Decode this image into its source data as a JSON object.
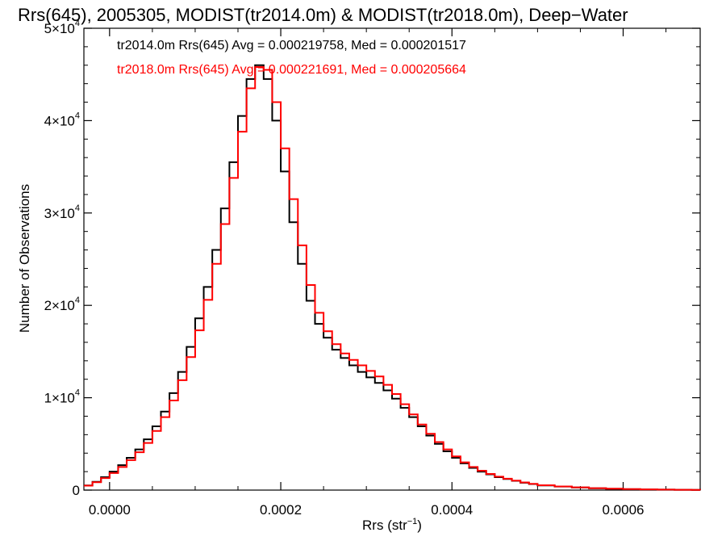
{
  "chart_data": {
    "type": "line",
    "title": "Rrs(645), 2005305, MODIST(tr2014.0m) & MODIST(tr2018.0m), Deep−Water",
    "xlabel": "Rrs (str",
    "xlabel_sup": "−1",
    "xlabel_close": ")",
    "ylabel": "Number of Observations",
    "xlim": [
      -3e-05,
      0.00069
    ],
    "ylim": [
      0,
      50000
    ],
    "x_ticks": [
      {
        "value": 0.0,
        "label": "0.0000"
      },
      {
        "value": 0.0002,
        "label": "0.0002"
      },
      {
        "value": 0.0004,
        "label": "0.0004"
      },
      {
        "value": 0.0006,
        "label": "0.0006"
      }
    ],
    "y_ticks": [
      {
        "value": 0,
        "label": "0",
        "mant": "",
        "exp": ""
      },
      {
        "value": 10000,
        "label": "",
        "mant": "1×10",
        "exp": "4"
      },
      {
        "value": 20000,
        "label": "",
        "mant": "2×10",
        "exp": "4"
      },
      {
        "value": 30000,
        "label": "",
        "mant": "3×10",
        "exp": "4"
      },
      {
        "value": 40000,
        "label": "",
        "mant": "4×10",
        "exp": "4"
      },
      {
        "value": 50000,
        "label": "",
        "mant": "5×10",
        "exp": "4"
      }
    ],
    "annotations": [
      "tr2014.0m Rrs(645) Avg = 0.000219758, Med = 0.000201517",
      "tr2018.0m Rrs(645) Avg = 0.000221691, Med = 0.000205664"
    ],
    "series": [
      {
        "color": "#000000",
        "x": [
          -3e-05,
          -2e-05,
          -1e-05,
          0.0,
          1e-05,
          2e-05,
          3e-05,
          4e-05,
          5e-05,
          6e-05,
          7e-05,
          8e-05,
          9e-05,
          0.0001,
          0.00011,
          0.00012,
          0.00013,
          0.00014,
          0.00015,
          0.00016,
          0.00017,
          0.00018,
          0.00019,
          0.0002,
          0.00021,
          0.00022,
          0.00023,
          0.00024,
          0.00025,
          0.00026,
          0.00027,
          0.00028,
          0.00029,
          0.0003,
          0.00031,
          0.00032,
          0.00033,
          0.00034,
          0.00035,
          0.00036,
          0.00037,
          0.00038,
          0.00039,
          0.0004,
          0.00041,
          0.00042,
          0.00043,
          0.00044,
          0.00045,
          0.00046,
          0.00047,
          0.00048,
          0.00049,
          0.0005,
          0.00052,
          0.00054,
          0.00056,
          0.00058,
          0.0006,
          0.00062,
          0.00064,
          0.00066,
          0.00068,
          0.00069
        ],
        "y": [
          500,
          900,
          1400,
          2000,
          2700,
          3500,
          4400,
          5500,
          6900,
          8500,
          10500,
          12800,
          15500,
          18600,
          22000,
          26000,
          30500,
          35500,
          40500,
          44500,
          46000,
          44500,
          40000,
          34500,
          29000,
          24500,
          20500,
          18000,
          16500,
          15200,
          14300,
          13500,
          12800,
          12200,
          11600,
          10800,
          9900,
          8900,
          7900,
          6900,
          5900,
          5000,
          4200,
          3500,
          2900,
          2400,
          2000,
          1700,
          1400,
          1200,
          1000,
          800,
          650,
          500,
          380,
          280,
          200,
          140,
          100,
          70,
          50,
          30,
          20,
          10
        ]
      },
      {
        "color": "#ff0000",
        "x": [
          -3e-05,
          -2e-05,
          -1e-05,
          0.0,
          1e-05,
          2e-05,
          3e-05,
          4e-05,
          5e-05,
          6e-05,
          7e-05,
          8e-05,
          9e-05,
          0.0001,
          0.00011,
          0.00012,
          0.00013,
          0.00014,
          0.00015,
          0.00016,
          0.00017,
          0.00018,
          0.00019,
          0.0002,
          0.00021,
          0.00022,
          0.00023,
          0.00024,
          0.00025,
          0.00026,
          0.00027,
          0.00028,
          0.00029,
          0.0003,
          0.00031,
          0.00032,
          0.00033,
          0.00034,
          0.00035,
          0.00036,
          0.00037,
          0.00038,
          0.00039,
          0.0004,
          0.00041,
          0.00042,
          0.00043,
          0.00044,
          0.00045,
          0.00046,
          0.00047,
          0.00048,
          0.00049,
          0.0005,
          0.00052,
          0.00054,
          0.00056,
          0.00058,
          0.0006,
          0.00062,
          0.00064,
          0.00066,
          0.00068,
          0.00069
        ],
        "y": [
          480,
          850,
          1300,
          1850,
          2500,
          3250,
          4100,
          5100,
          6400,
          7900,
          9700,
          11900,
          14400,
          17300,
          20600,
          24500,
          28800,
          33800,
          38800,
          43500,
          45800,
          45500,
          42000,
          37000,
          31500,
          26500,
          22200,
          19200,
          17200,
          15800,
          14800,
          14100,
          13500,
          12900,
          12300,
          11400,
          10400,
          9300,
          8200,
          7100,
          6100,
          5200,
          4400,
          3650,
          3000,
          2500,
          2100,
          1750,
          1450,
          1230,
          1030,
          830,
          680,
          520,
          390,
          290,
          210,
          150,
          105,
          72,
          52,
          32,
          21,
          10
        ]
      }
    ]
  }
}
